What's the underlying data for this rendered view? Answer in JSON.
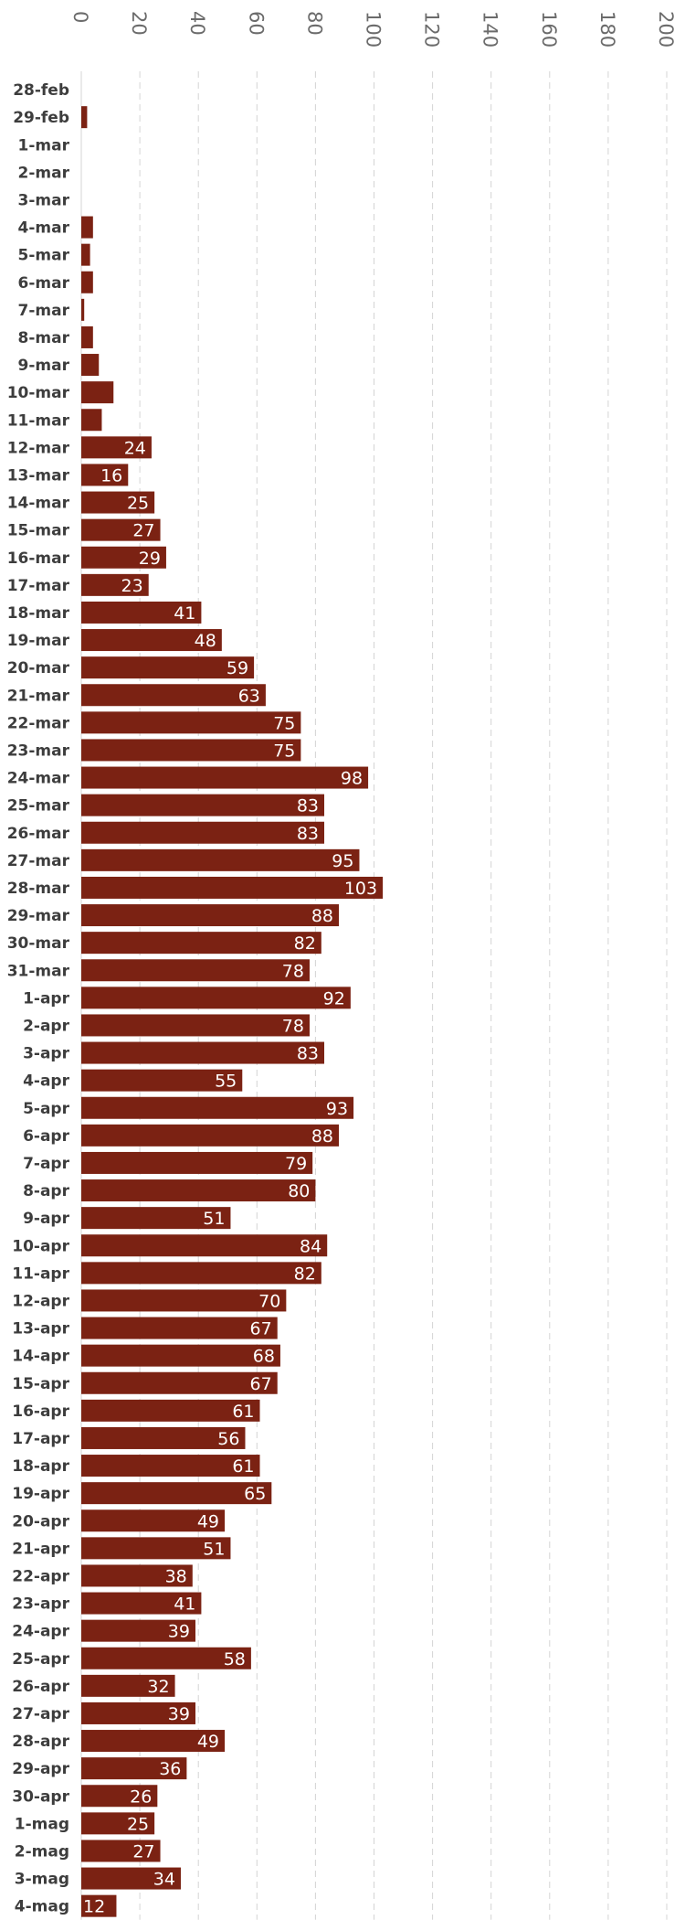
{
  "chart_data": {
    "type": "bar",
    "orientation": "horizontal",
    "title": "",
    "xlabel": "",
    "ylabel": "",
    "xlim": [
      0,
      200
    ],
    "ticks": [
      0,
      20,
      40,
      60,
      80,
      100,
      120,
      140,
      160,
      180,
      200
    ],
    "grid": true,
    "legend": "none",
    "bar_color": "#7b2213",
    "label_color": "#ffffff",
    "categories": [
      "28-feb",
      "29-feb",
      "1-mar",
      "2-mar",
      "3-mar",
      "4-mar",
      "5-mar",
      "6-mar",
      "7-mar",
      "8-mar",
      "9-mar",
      "10-mar",
      "11-mar",
      "12-mar",
      "13-mar",
      "14-mar",
      "15-mar",
      "16-mar",
      "17-mar",
      "18-mar",
      "19-mar",
      "20-mar",
      "21-mar",
      "22-mar",
      "23-mar",
      "24-mar",
      "25-mar",
      "26-mar",
      "27-mar",
      "28-mar",
      "29-mar",
      "30-mar",
      "31-mar",
      "1-apr",
      "2-apr",
      "3-apr",
      "4-apr",
      "5-apr",
      "6-apr",
      "7-apr",
      "8-apr",
      "9-apr",
      "10-apr",
      "11-apr",
      "12-apr",
      "13-apr",
      "14-apr",
      "15-apr",
      "16-apr",
      "17-apr",
      "18-apr",
      "19-apr",
      "20-apr",
      "21-apr",
      "22-apr",
      "23-apr",
      "24-apr",
      "25-apr",
      "26-apr",
      "27-apr",
      "28-apr",
      "29-apr",
      "30-apr",
      "1-mag",
      "2-mag",
      "3-mag",
      "4-mag"
    ],
    "values": [
      0,
      2,
      0,
      0,
      0,
      4,
      3,
      4,
      1,
      4,
      6,
      11,
      7,
      24,
      16,
      25,
      27,
      29,
      23,
      41,
      48,
      59,
      63,
      75,
      75,
      98,
      83,
      83,
      95,
      103,
      88,
      82,
      78,
      92,
      78,
      83,
      55,
      93,
      88,
      79,
      80,
      51,
      84,
      82,
      70,
      67,
      68,
      67,
      61,
      56,
      61,
      65,
      49,
      51,
      38,
      41,
      39,
      58,
      32,
      39,
      49,
      36,
      26,
      25,
      27,
      34,
      12
    ],
    "labeled_min_value": 12
  }
}
